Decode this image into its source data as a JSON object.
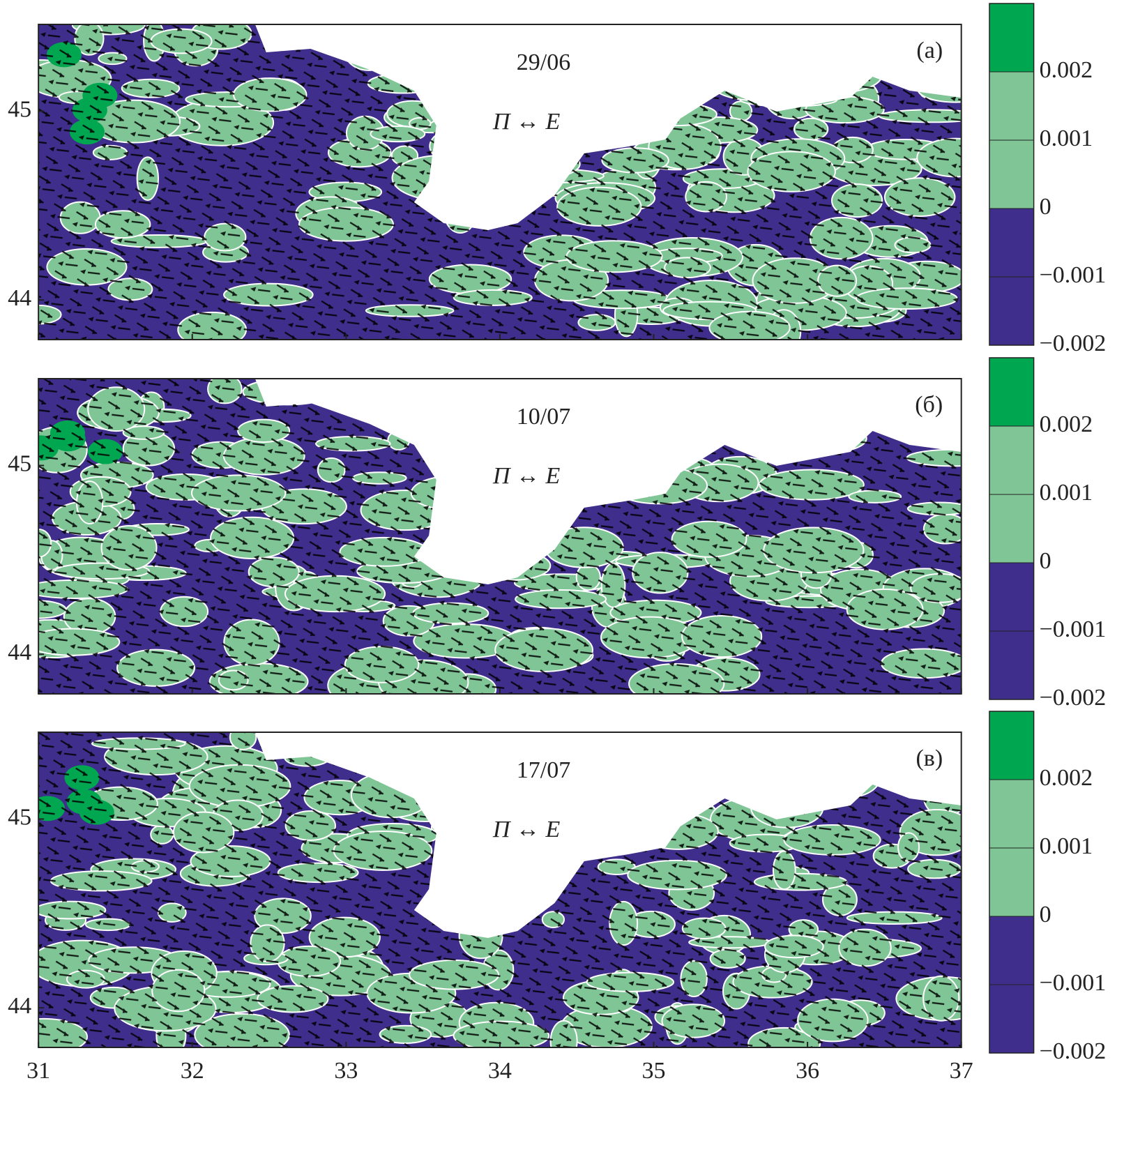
{
  "chart_data": [
    {
      "type": "contour",
      "title": "29/06",
      "label": "(а)",
      "annotation": "Π ↔ E",
      "xlim": [
        31,
        37
      ],
      "xticks": [
        31,
        32,
        33,
        34,
        35,
        36,
        37
      ],
      "xtick_labels": false,
      "ylim": [
        43.79,
        45.46
      ],
      "yticks": [
        44,
        45
      ],
      "colorbar": {
        "lim": [
          -0.002,
          0.003
        ],
        "bands": [
          {
            "from": -0.002,
            "to": 0,
            "color": "#3f2e8c"
          },
          {
            "from": 0,
            "to": 0.002,
            "color": "#7fc596"
          },
          {
            "from": 0.002,
            "to": 0.003,
            "color": "#00a650"
          }
        ],
        "ticks": [
          {
            "value": -0.002,
            "label": "−0.002"
          },
          {
            "value": -0.001,
            "label": "−0.001"
          },
          0,
          0.001,
          0.002
        ]
      }
    },
    {
      "type": "contour",
      "title": "10/07",
      "label": "(б)",
      "annotation": "Π ↔ E",
      "xlim": [
        31,
        37
      ],
      "xticks": [
        31,
        32,
        33,
        34,
        35,
        36,
        37
      ],
      "xtick_labels": false,
      "ylim": [
        43.79,
        45.46
      ],
      "yticks": [
        44,
        45
      ],
      "colorbar": {
        "lim": [
          -0.002,
          0.003
        ],
        "bands": [
          {
            "from": -0.002,
            "to": 0,
            "color": "#3f2e8c"
          },
          {
            "from": 0,
            "to": 0.002,
            "color": "#7fc596"
          },
          {
            "from": 0.002,
            "to": 0.003,
            "color": "#00a650"
          }
        ],
        "ticks": [
          {
            "value": -0.002,
            "label": "−0.002"
          },
          {
            "value": -0.001,
            "label": "−0.001"
          },
          0,
          0.001,
          0.002
        ]
      }
    },
    {
      "type": "contour",
      "title": "17/07",
      "label": "(в)",
      "annotation": "Π ↔ E",
      "xlim": [
        31,
        37
      ],
      "xticks": [
        31,
        32,
        33,
        34,
        35,
        36,
        37
      ],
      "xtick_labels": true,
      "ylim": [
        43.79,
        45.46
      ],
      "yticks": [
        44,
        45
      ],
      "colorbar": {
        "lim": [
          -0.002,
          0.003
        ],
        "bands": [
          {
            "from": -0.002,
            "to": 0,
            "color": "#3f2e8c"
          },
          {
            "from": 0,
            "to": 0.002,
            "color": "#7fc596"
          },
          {
            "from": 0.002,
            "to": 0.003,
            "color": "#00a650"
          }
        ],
        "ticks": [
          {
            "value": -0.002,
            "label": "−0.002"
          },
          {
            "value": -0.001,
            "label": "−0.001"
          },
          0,
          0.001,
          0.002
        ]
      }
    }
  ]
}
